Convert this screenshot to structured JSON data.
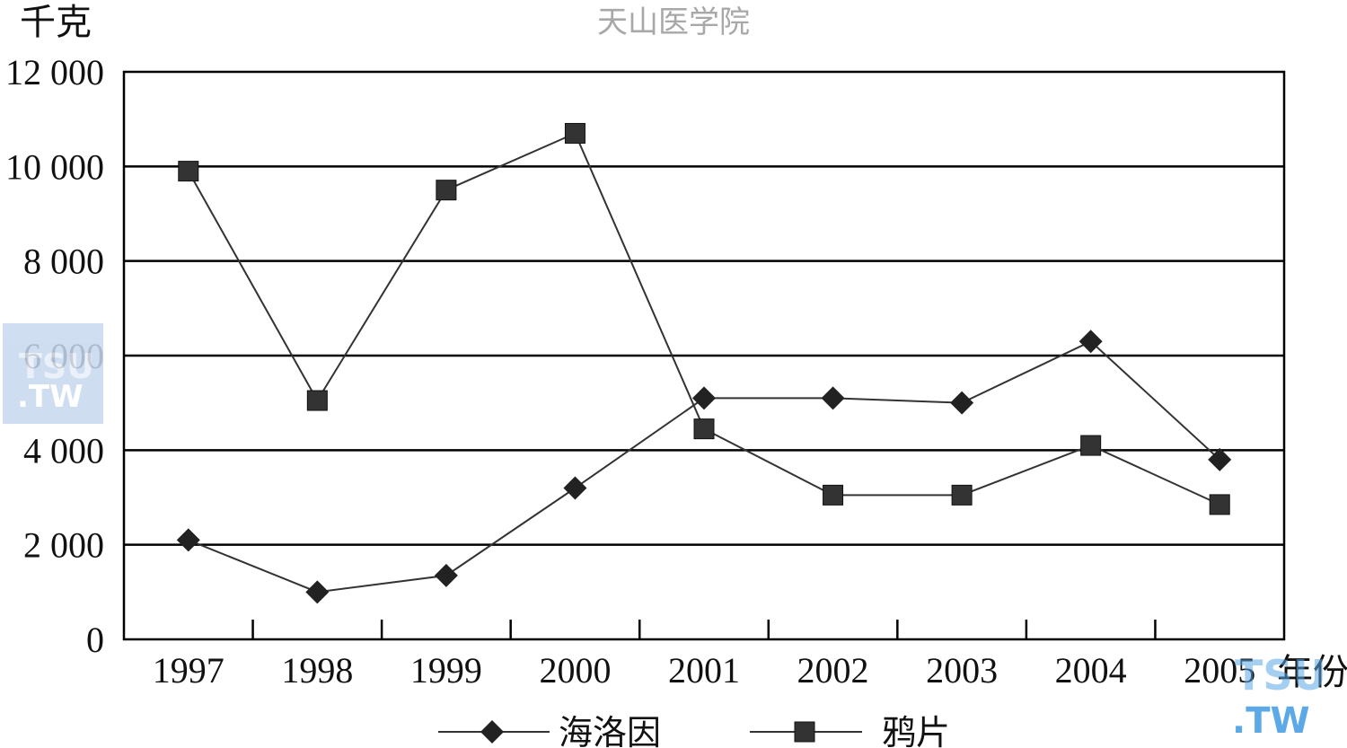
{
  "watermark": {
    "top_text": "天山医学院",
    "logo_brand": "TSU",
    "logo_domain": ".TW"
  },
  "chart_data": {
    "type": "line",
    "title": "",
    "ylabel": "千克",
    "xlabel": "年份",
    "ylim": [
      0,
      12000
    ],
    "yticks": [
      0,
      2000,
      4000,
      6000,
      8000,
      10000,
      12000
    ],
    "ytick_labels": [
      "0",
      "2 000",
      "4 000",
      "6 000",
      "8 000",
      "10 000",
      "12 000"
    ],
    "categories": [
      "1997",
      "1998",
      "1999",
      "2000",
      "2001",
      "2002",
      "2003",
      "2004",
      "2005"
    ],
    "grid": "horizontal",
    "legend_position": "bottom",
    "series": [
      {
        "name": "海洛因",
        "marker": "diamond",
        "color": "#222222",
        "values": [
          2100,
          1000,
          1350,
          3200,
          5100,
          5100,
          5000,
          6300,
          3800
        ]
      },
      {
        "name": "鸦片",
        "marker": "square",
        "color": "#333333",
        "values": [
          9900,
          5050,
          9500,
          10700,
          4450,
          3050,
          3050,
          4100,
          2850
        ]
      }
    ]
  }
}
